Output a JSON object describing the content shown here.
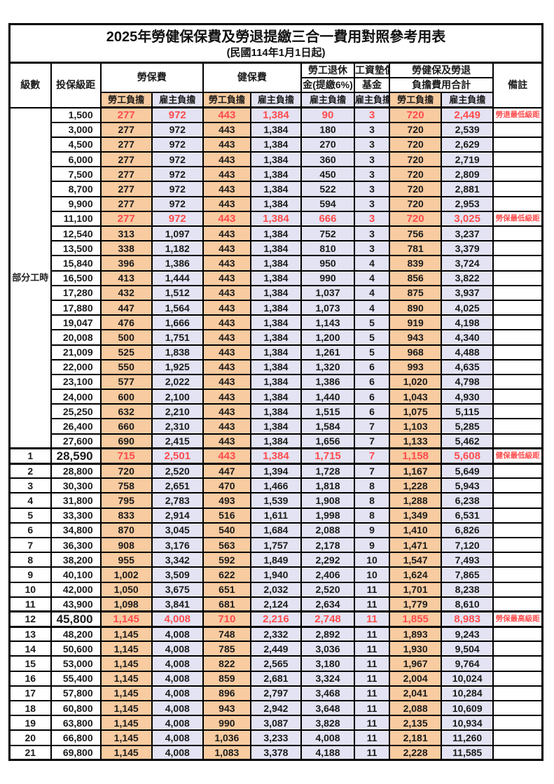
{
  "title": "2025年勞健保保費及勞退提繳三合一費用對照參考用表",
  "subtitle": "(民國114年1月1日起)",
  "colors": {
    "employee_bg": "#F8CBA0",
    "employer_bg": "#E3E3F3",
    "highlight_text": "#FF4C4C",
    "grid_line": "#000000"
  },
  "header": {
    "level": "級數",
    "bracket": "投保級距",
    "labor_fee": "勞保費",
    "health_fee": "健保費",
    "pension_line1": "勞工退休",
    "pension_line2": "金(提繳6%)",
    "wage_fund_line1": "工資墊償",
    "wage_fund_line2": "基金",
    "total_line1": "勞健保及勞退",
    "total_line2": "負擔費用合計",
    "remark": "備註",
    "employee_burden": "勞工負擔",
    "employer_burden": "雇主負擔"
  },
  "part_time": {
    "label": "部分工時",
    "rowspan": 23
  },
  "column_value_pattern": [
    "emp",
    "er",
    "emp",
    "er",
    "er",
    "er",
    "emp",
    "er"
  ],
  "rows": [
    {
      "lv": "",
      "bk": "1,500",
      "v": [
        "277",
        "972",
        "443",
        "1,384",
        "90",
        "3",
        "720",
        "2,449"
      ],
      "rm": "勞退最低級距",
      "hl": true,
      "big": false
    },
    {
      "lv": "",
      "bk": "3,000",
      "v": [
        "277",
        "972",
        "443",
        "1,384",
        "180",
        "3",
        "720",
        "2,539"
      ],
      "rm": "",
      "hl": false,
      "big": false
    },
    {
      "lv": "",
      "bk": "4,500",
      "v": [
        "277",
        "972",
        "443",
        "1,384",
        "270",
        "3",
        "720",
        "2,629"
      ],
      "rm": "",
      "hl": false,
      "big": false
    },
    {
      "lv": "",
      "bk": "6,000",
      "v": [
        "277",
        "972",
        "443",
        "1,384",
        "360",
        "3",
        "720",
        "2,719"
      ],
      "rm": "",
      "hl": false,
      "big": false
    },
    {
      "lv": "",
      "bk": "7,500",
      "v": [
        "277",
        "972",
        "443",
        "1,384",
        "450",
        "3",
        "720",
        "2,809"
      ],
      "rm": "",
      "hl": false,
      "big": false
    },
    {
      "lv": "",
      "bk": "8,700",
      "v": [
        "277",
        "972",
        "443",
        "1,384",
        "522",
        "3",
        "720",
        "2,881"
      ],
      "rm": "",
      "hl": false,
      "big": false
    },
    {
      "lv": "",
      "bk": "9,900",
      "v": [
        "277",
        "972",
        "443",
        "1,384",
        "594",
        "3",
        "720",
        "2,953"
      ],
      "rm": "",
      "hl": false,
      "big": false
    },
    {
      "lv": "",
      "bk": "11,100",
      "v": [
        "277",
        "972",
        "443",
        "1,384",
        "666",
        "3",
        "720",
        "3,025"
      ],
      "rm": "勞保最低級距",
      "hl": true,
      "big": false
    },
    {
      "lv": "",
      "bk": "12,540",
      "v": [
        "313",
        "1,097",
        "443",
        "1,384",
        "752",
        "3",
        "756",
        "3,237"
      ],
      "rm": "",
      "hl": false,
      "big": false
    },
    {
      "lv": "",
      "bk": "13,500",
      "v": [
        "338",
        "1,182",
        "443",
        "1,384",
        "810",
        "3",
        "781",
        "3,379"
      ],
      "rm": "",
      "hl": false,
      "big": false
    },
    {
      "lv": "",
      "bk": "15,840",
      "v": [
        "396",
        "1,386",
        "443",
        "1,384",
        "950",
        "4",
        "839",
        "3,724"
      ],
      "rm": "",
      "hl": false,
      "big": false
    },
    {
      "lv": "",
      "bk": "16,500",
      "v": [
        "413",
        "1,444",
        "443",
        "1,384",
        "990",
        "4",
        "856",
        "3,822"
      ],
      "rm": "",
      "hl": false,
      "big": false
    },
    {
      "lv": "",
      "bk": "17,280",
      "v": [
        "432",
        "1,512",
        "443",
        "1,384",
        "1,037",
        "4",
        "875",
        "3,937"
      ],
      "rm": "",
      "hl": false,
      "big": false
    },
    {
      "lv": "",
      "bk": "17,880",
      "v": [
        "447",
        "1,564",
        "443",
        "1,384",
        "1,073",
        "4",
        "890",
        "4,025"
      ],
      "rm": "",
      "hl": false,
      "big": false
    },
    {
      "lv": "",
      "bk": "19,047",
      "v": [
        "476",
        "1,666",
        "443",
        "1,384",
        "1,143",
        "5",
        "919",
        "4,198"
      ],
      "rm": "",
      "hl": false,
      "big": false
    },
    {
      "lv": "",
      "bk": "20,008",
      "v": [
        "500",
        "1,751",
        "443",
        "1,384",
        "1,200",
        "5",
        "943",
        "4,340"
      ],
      "rm": "",
      "hl": false,
      "big": false
    },
    {
      "lv": "",
      "bk": "21,009",
      "v": [
        "525",
        "1,838",
        "443",
        "1,384",
        "1,261",
        "5",
        "968",
        "4,488"
      ],
      "rm": "",
      "hl": false,
      "big": false
    },
    {
      "lv": "",
      "bk": "22,000",
      "v": [
        "550",
        "1,925",
        "443",
        "1,384",
        "1,320",
        "6",
        "993",
        "4,635"
      ],
      "rm": "",
      "hl": false,
      "big": false
    },
    {
      "lv": "",
      "bk": "23,100",
      "v": [
        "577",
        "2,022",
        "443",
        "1,384",
        "1,386",
        "6",
        "1,020",
        "4,798"
      ],
      "rm": "",
      "hl": false,
      "big": false
    },
    {
      "lv": "",
      "bk": "24,000",
      "v": [
        "600",
        "2,100",
        "443",
        "1,384",
        "1,440",
        "6",
        "1,043",
        "4,930"
      ],
      "rm": "",
      "hl": false,
      "big": false
    },
    {
      "lv": "",
      "bk": "25,250",
      "v": [
        "632",
        "2,210",
        "443",
        "1,384",
        "1,515",
        "6",
        "1,075",
        "5,115"
      ],
      "rm": "",
      "hl": false,
      "big": false
    },
    {
      "lv": "",
      "bk": "26,400",
      "v": [
        "660",
        "2,310",
        "443",
        "1,384",
        "1,584",
        "7",
        "1,103",
        "5,285"
      ],
      "rm": "",
      "hl": false,
      "big": false
    },
    {
      "lv": "",
      "bk": "27,600",
      "v": [
        "690",
        "2,415",
        "443",
        "1,384",
        "1,656",
        "7",
        "1,133",
        "5,462"
      ],
      "rm": "",
      "hl": false,
      "big": false
    },
    {
      "lv": "1",
      "bk": "28,590",
      "v": [
        "715",
        "2,501",
        "443",
        "1,384",
        "1,715",
        "7",
        "1,158",
        "5,608"
      ],
      "rm": "健保最低級距",
      "hl": true,
      "big": true
    },
    {
      "lv": "2",
      "bk": "28,800",
      "v": [
        "720",
        "2,520",
        "447",
        "1,394",
        "1,728",
        "7",
        "1,167",
        "5,649"
      ],
      "rm": "",
      "hl": false,
      "big": false
    },
    {
      "lv": "3",
      "bk": "30,300",
      "v": [
        "758",
        "2,651",
        "470",
        "1,466",
        "1,818",
        "8",
        "1,228",
        "5,943"
      ],
      "rm": "",
      "hl": false,
      "big": false
    },
    {
      "lv": "4",
      "bk": "31,800",
      "v": [
        "795",
        "2,783",
        "493",
        "1,539",
        "1,908",
        "8",
        "1,288",
        "6,238"
      ],
      "rm": "",
      "hl": false,
      "big": false
    },
    {
      "lv": "5",
      "bk": "33,300",
      "v": [
        "833",
        "2,914",
        "516",
        "1,611",
        "1,998",
        "8",
        "1,349",
        "6,531"
      ],
      "rm": "",
      "hl": false,
      "big": false
    },
    {
      "lv": "6",
      "bk": "34,800",
      "v": [
        "870",
        "3,045",
        "540",
        "1,684",
        "2,088",
        "9",
        "1,410",
        "6,826"
      ],
      "rm": "",
      "hl": false,
      "big": false
    },
    {
      "lv": "7",
      "bk": "36,300",
      "v": [
        "908",
        "3,176",
        "563",
        "1,757",
        "2,178",
        "9",
        "1,471",
        "7,120"
      ],
      "rm": "",
      "hl": false,
      "big": false
    },
    {
      "lv": "8",
      "bk": "38,200",
      "v": [
        "955",
        "3,342",
        "592",
        "1,849",
        "2,292",
        "10",
        "1,547",
        "7,493"
      ],
      "rm": "",
      "hl": false,
      "big": false
    },
    {
      "lv": "9",
      "bk": "40,100",
      "v": [
        "1,002",
        "3,509",
        "622",
        "1,940",
        "2,406",
        "10",
        "1,624",
        "7,865"
      ],
      "rm": "",
      "hl": false,
      "big": false
    },
    {
      "lv": "10",
      "bk": "42,000",
      "v": [
        "1,050",
        "3,675",
        "651",
        "2,032",
        "2,520",
        "11",
        "1,701",
        "8,238"
      ],
      "rm": "",
      "hl": false,
      "big": false
    },
    {
      "lv": "11",
      "bk": "43,900",
      "v": [
        "1,098",
        "3,841",
        "681",
        "2,124",
        "2,634",
        "11",
        "1,779",
        "8,610"
      ],
      "rm": "",
      "hl": false,
      "big": false
    },
    {
      "lv": "12",
      "bk": "45,800",
      "v": [
        "1,145",
        "4,008",
        "710",
        "2,216",
        "2,748",
        "11",
        "1,855",
        "8,983"
      ],
      "rm": "勞保最高級距",
      "hl": true,
      "big": true
    },
    {
      "lv": "13",
      "bk": "48,200",
      "v": [
        "1,145",
        "4,008",
        "748",
        "2,332",
        "2,892",
        "11",
        "1,893",
        "9,243"
      ],
      "rm": "",
      "hl": false,
      "big": false
    },
    {
      "lv": "14",
      "bk": "50,600",
      "v": [
        "1,145",
        "4,008",
        "785",
        "2,449",
        "3,036",
        "11",
        "1,930",
        "9,504"
      ],
      "rm": "",
      "hl": false,
      "big": false
    },
    {
      "lv": "15",
      "bk": "53,000",
      "v": [
        "1,145",
        "4,008",
        "822",
        "2,565",
        "3,180",
        "11",
        "1,967",
        "9,764"
      ],
      "rm": "",
      "hl": false,
      "big": false
    },
    {
      "lv": "16",
      "bk": "55,400",
      "v": [
        "1,145",
        "4,008",
        "859",
        "2,681",
        "3,324",
        "11",
        "2,004",
        "10,024"
      ],
      "rm": "",
      "hl": false,
      "big": false
    },
    {
      "lv": "17",
      "bk": "57,800",
      "v": [
        "1,145",
        "4,008",
        "896",
        "2,797",
        "3,468",
        "11",
        "2,041",
        "10,284"
      ],
      "rm": "",
      "hl": false,
      "big": false
    },
    {
      "lv": "18",
      "bk": "60,800",
      "v": [
        "1,145",
        "4,008",
        "943",
        "2,942",
        "3,648",
        "11",
        "2,088",
        "10,609"
      ],
      "rm": "",
      "hl": false,
      "big": false
    },
    {
      "lv": "19",
      "bk": "63,800",
      "v": [
        "1,145",
        "4,008",
        "990",
        "3,087",
        "3,828",
        "11",
        "2,135",
        "10,934"
      ],
      "rm": "",
      "hl": false,
      "big": false
    },
    {
      "lv": "20",
      "bk": "66,800",
      "v": [
        "1,145",
        "4,008",
        "1,036",
        "3,233",
        "4,008",
        "11",
        "2,181",
        "11,260"
      ],
      "rm": "",
      "hl": false,
      "big": false
    },
    {
      "lv": "21",
      "bk": "69,800",
      "v": [
        "1,145",
        "4,008",
        "1,083",
        "3,378",
        "4,188",
        "11",
        "2,228",
        "11,585"
      ],
      "rm": "",
      "hl": false,
      "big": false
    }
  ]
}
